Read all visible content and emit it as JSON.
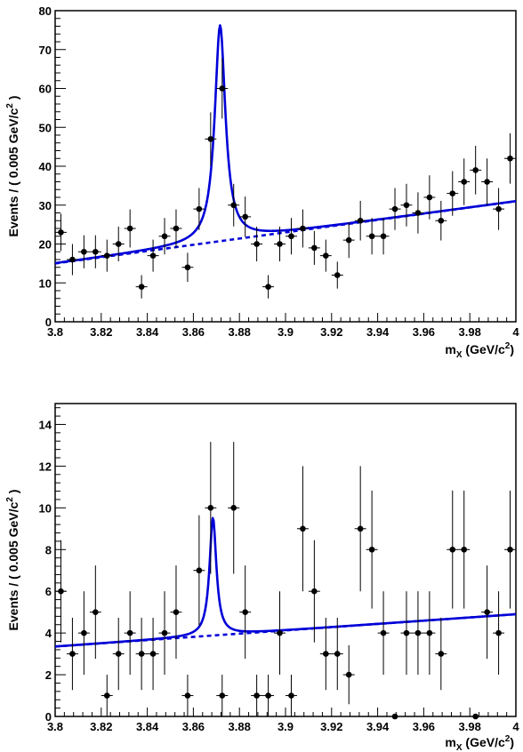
{
  "chart_data": [
    {
      "type": "scatter",
      "xlabel_main": "m",
      "xlabel_sub": "X",
      "xlabel_unit": "(GeV/c",
      "xlabel_sup": "2",
      "xlabel_close": ")",
      "ylabel_main": "Events / ( 0.005 GeV/c",
      "ylabel_sup": "2",
      "ylabel_close": ")",
      "xlim": [
        3.8,
        4.0
      ],
      "ylim": [
        0,
        80
      ],
      "xticks": [
        "3.8",
        "3.82",
        "3.84",
        "3.86",
        "3.88",
        "3.9",
        "3.92",
        "3.94",
        "3.96",
        "3.98",
        "4"
      ],
      "yticks": [
        "0",
        "10",
        "20",
        "30",
        "40",
        "50",
        "60",
        "70",
        "80"
      ],
      "series": [
        {
          "kind": "points",
          "x_halfwidth": 0.0025,
          "x": [
            3.8025,
            3.8075,
            3.8125,
            3.8175,
            3.8225,
            3.8275,
            3.8325,
            3.8375,
            3.8425,
            3.8475,
            3.8525,
            3.8575,
            3.8625,
            3.8675,
            3.8725,
            3.8775,
            3.8825,
            3.8875,
            3.8925,
            3.8975,
            3.9025,
            3.9075,
            3.9125,
            3.9175,
            3.9225,
            3.9275,
            3.9325,
            3.9375,
            3.9425,
            3.9475,
            3.9525,
            3.9575,
            3.9625,
            3.9675,
            3.9725,
            3.9775,
            3.9825,
            3.9875,
            3.9925,
            3.9975
          ],
          "y": [
            23,
            16,
            18,
            18,
            17,
            20,
            24,
            9,
            17,
            22,
            24,
            14,
            29,
            47,
            60,
            30,
            27,
            20,
            9,
            20,
            22,
            24,
            19,
            17,
            12,
            21,
            26,
            22,
            22,
            29,
            30,
            28,
            32,
            26,
            33,
            36,
            39,
            36,
            29,
            42
          ]
        },
        {
          "kind": "fit-total",
          "background": [
            15,
            31
          ],
          "peak_mass": 3.8716,
          "peak_height": 55.5,
          "peak_halfwidth": 0.0028
        },
        {
          "kind": "fit-background",
          "background": [
            15,
            31
          ]
        }
      ],
      "colors": {
        "fit": "#0000d8",
        "points": "#000000"
      }
    },
    {
      "type": "scatter",
      "xlabel_main": "m",
      "xlabel_sub": "X",
      "xlabel_unit": "(GeV/c",
      "xlabel_sup": "2",
      "xlabel_close": ")",
      "ylabel_main": "Events / ( 0.005 GeV/c",
      "ylabel_sup": "2",
      "ylabel_close": ")",
      "xlim": [
        3.8,
        4.0
      ],
      "ylim": [
        0,
        15
      ],
      "xticks": [
        "3.8",
        "3.82",
        "3.84",
        "3.86",
        "3.88",
        "3.9",
        "3.92",
        "3.94",
        "3.96",
        "3.98",
        "4"
      ],
      "yticks": [
        "0",
        "2",
        "4",
        "6",
        "8",
        "10",
        "12",
        "14"
      ],
      "series": [
        {
          "kind": "points",
          "x_halfwidth": 0.0025,
          "x": [
            3.8025,
            3.8075,
            3.8125,
            3.8175,
            3.8225,
            3.8275,
            3.8325,
            3.8375,
            3.8425,
            3.8475,
            3.8525,
            3.8575,
            3.8625,
            3.8675,
            3.8725,
            3.8775,
            3.8825,
            3.8875,
            3.8925,
            3.8975,
            3.9025,
            3.9075,
            3.9125,
            3.9175,
            3.9225,
            3.9275,
            3.9325,
            3.9375,
            3.9425,
            3.9475,
            3.9525,
            3.9575,
            3.9625,
            3.9675,
            3.9725,
            3.9775,
            3.9825,
            3.9875,
            3.9925,
            3.9975
          ],
          "y": [
            6,
            3,
            4,
            5,
            1,
            3,
            4,
            3,
            3,
            4,
            5,
            1,
            7,
            10,
            1,
            10,
            5,
            1,
            1,
            4,
            1,
            9,
            6,
            3,
            3,
            2,
            9,
            8,
            4,
            0,
            4,
            4,
            4,
            3,
            8,
            8,
            0,
            5,
            4,
            8
          ]
        },
        {
          "kind": "fit-total",
          "background": [
            3.35,
            4.9
          ],
          "peak_mass": 3.8685,
          "peak_height": 5.65,
          "peak_halfwidth": 0.0018
        },
        {
          "kind": "fit-background",
          "background": [
            3.35,
            4.9
          ]
        }
      ],
      "colors": {
        "fit": "#0000d8",
        "points": "#000000"
      }
    }
  ]
}
